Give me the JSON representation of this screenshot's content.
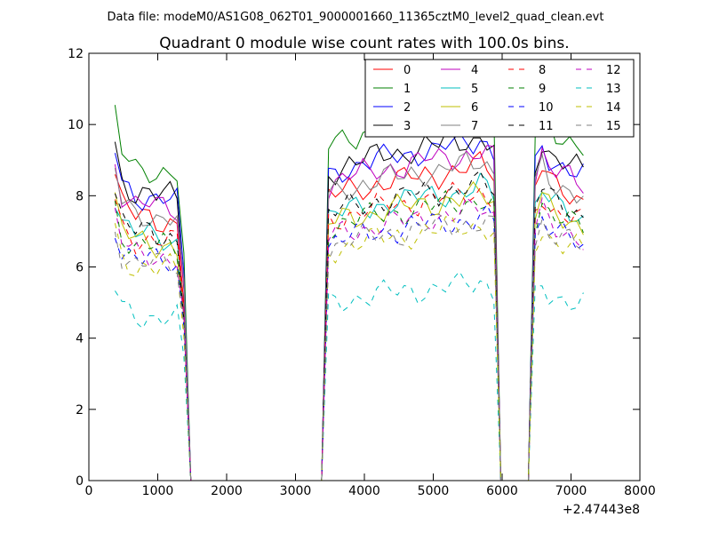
{
  "chart_data": {
    "type": "line",
    "supertitle": "Data file: modeM0/AS1G08_062T01_9000001660_11365cztM0_level2_quad_clean.evt",
    "title": "Quadrant 0 module wise count rates with 100.0s bins.",
    "xlabel": "",
    "ylabel": "",
    "xlim": [
      0,
      8000
    ],
    "ylim": [
      0,
      12
    ],
    "x_ticks": [
      0,
      1000,
      2000,
      3000,
      4000,
      5000,
      6000,
      7000,
      8000
    ],
    "y_ticks": [
      0,
      2,
      4,
      6,
      8,
      10,
      12
    ],
    "x_offset_text": "+2.47443e8",
    "legend_position": "top-right",
    "legend_columns": 4,
    "x": [
      380,
      480,
      580,
      680,
      780,
      880,
      980,
      1080,
      1180,
      1280,
      1380,
      1480,
      1580,
      1680,
      1780,
      1880,
      1980,
      2080,
      2180,
      2280,
      2380,
      2480,
      2580,
      2680,
      2780,
      2880,
      2980,
      3080,
      3180,
      3280,
      3380,
      3480,
      3580,
      3680,
      3780,
      3880,
      3980,
      4080,
      4180,
      4280,
      4380,
      4480,
      4580,
      4680,
      4780,
      4880,
      4980,
      5080,
      5180,
      5280,
      5380,
      5480,
      5580,
      5680,
      5780,
      5880,
      5980,
      6080,
      6180,
      6280,
      6380,
      6480,
      6580,
      6680,
      6780,
      6880,
      6980,
      7080,
      7180
    ],
    "envelope": [
      1,
      0.9,
      0.88,
      0.86,
      0.86,
      0.86,
      0.85,
      0.85,
      0.85,
      0.84,
      0.6,
      0,
      0,
      0,
      0,
      0,
      0,
      0,
      0,
      0,
      0,
      0,
      0,
      0,
      0,
      0,
      0,
      0,
      0,
      0,
      0,
      0.92,
      0.93,
      0.94,
      0.95,
      0.95,
      0.96,
      0.96,
      0.97,
      0.97,
      0.98,
      0.98,
      0.98,
      0.99,
      0.99,
      1,
      1,
      1,
      1.01,
      1.01,
      1.01,
      1.02,
      1.02,
      1.03,
      1.02,
      1.0,
      0,
      0,
      0,
      0,
      0,
      0.95,
      1.02,
      0.98,
      0.96,
      0.95,
      0.94,
      0.93,
      0.92
    ],
    "series": [
      {
        "name": "0",
        "level": 8.6,
        "color": "#ff0000",
        "dash": "solid"
      },
      {
        "name": "1",
        "level": 10.2,
        "color": "#008000",
        "dash": "solid"
      },
      {
        "name": "2",
        "level": 9.3,
        "color": "#0000ff",
        "dash": "solid"
      },
      {
        "name": "3",
        "level": 9.4,
        "color": "#000000",
        "dash": "solid"
      },
      {
        "name": "4",
        "level": 9.0,
        "color": "#bf00bf",
        "dash": "solid"
      },
      {
        "name": "5",
        "level": 8.0,
        "color": "#00bfbf",
        "dash": "solid"
      },
      {
        "name": "6",
        "level": 7.8,
        "color": "#bfbf00",
        "dash": "solid"
      },
      {
        "name": "7",
        "level": 8.7,
        "color": "#808080",
        "dash": "solid"
      },
      {
        "name": "8",
        "level": 7.9,
        "color": "#ff0000",
        "dash": "dashed"
      },
      {
        "name": "9",
        "level": 7.7,
        "color": "#008000",
        "dash": "dashed"
      },
      {
        "name": "10",
        "level": 7.2,
        "color": "#0000ff",
        "dash": "dashed"
      },
      {
        "name": "11",
        "level": 8.1,
        "color": "#000000",
        "dash": "dashed"
      },
      {
        "name": "12",
        "level": 7.4,
        "color": "#bf00bf",
        "dash": "dashed"
      },
      {
        "name": "13",
        "level": 5.4,
        "color": "#00bfbf",
        "dash": "dashed"
      },
      {
        "name": "14",
        "level": 7.0,
        "color": "#bfbf00",
        "dash": "dashed"
      },
      {
        "name": "15",
        "level": 7.1,
        "color": "#808080",
        "dash": "dashed"
      }
    ]
  }
}
